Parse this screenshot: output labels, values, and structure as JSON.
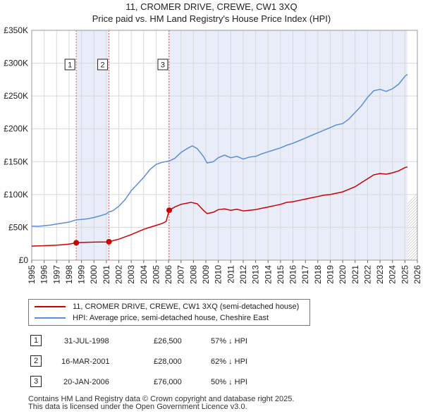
{
  "title_line1": "11, CROMER DRIVE, CREWE, CW1 3XQ",
  "title_line2": "Price paid vs. HM Land Registry's House Price Index (HPI)",
  "chart_data": {
    "type": "line",
    "xlim": [
      1995.0,
      2026.0
    ],
    "ylim": [
      0,
      350000
    ],
    "y_ticks": [
      {
        "value": 0,
        "label": "£0"
      },
      {
        "value": 50000,
        "label": "£50K"
      },
      {
        "value": 100000,
        "label": "£100K"
      },
      {
        "value": 150000,
        "label": "£150K"
      },
      {
        "value": 200000,
        "label": "£200K"
      },
      {
        "value": 250000,
        "label": "£250K"
      },
      {
        "value": 300000,
        "label": "£300K"
      },
      {
        "value": 350000,
        "label": "£350K"
      }
    ],
    "x_ticks": [
      "1995",
      "1996",
      "1997",
      "1998",
      "1999",
      "2000",
      "2001",
      "2002",
      "2003",
      "2004",
      "2005",
      "2006",
      "2007",
      "2008",
      "2009",
      "2010",
      "2011",
      "2012",
      "2013",
      "2014",
      "2015",
      "2016",
      "2017",
      "2018",
      "2019",
      "2020",
      "2021",
      "2022",
      "2023",
      "2024",
      "2025",
      "2026"
    ],
    "shaded_spans": [
      [
        1998.58,
        2001.21
      ],
      [
        2006.05,
        2025.2
      ]
    ],
    "future_start": 2025.2,
    "series": [
      {
        "name": "11, CROMER DRIVE, CREWE, CW1 3XQ (semi-detached house)",
        "color": "#cc0000",
        "points": [
          [
            1995.0,
            21500
          ],
          [
            1996.0,
            22000
          ],
          [
            1997.0,
            22800
          ],
          [
            1998.0,
            24500
          ],
          [
            1998.58,
            26500
          ],
          [
            1999.0,
            27000
          ],
          [
            2000.0,
            27500
          ],
          [
            2001.0,
            27800
          ],
          [
            2001.21,
            28000
          ],
          [
            2002.0,
            32000
          ],
          [
            2003.0,
            39000
          ],
          [
            2004.0,
            47000
          ],
          [
            2004.5,
            50000
          ],
          [
            2005.0,
            53000
          ],
          [
            2005.5,
            56000
          ],
          [
            2005.8,
            59000
          ],
          [
            2006.05,
            76000
          ],
          [
            2006.5,
            81000
          ],
          [
            2007.0,
            85000
          ],
          [
            2007.8,
            88000
          ],
          [
            2008.3,
            86000
          ],
          [
            2008.8,
            76000
          ],
          [
            2009.1,
            71000
          ],
          [
            2009.6,
            73000
          ],
          [
            2010.0,
            77000
          ],
          [
            2010.5,
            78000
          ],
          [
            2011.0,
            76000
          ],
          [
            2011.5,
            77500
          ],
          [
            2012.0,
            75000
          ],
          [
            2012.5,
            76000
          ],
          [
            2013.0,
            77000
          ],
          [
            2013.5,
            79000
          ],
          [
            2014.0,
            81000
          ],
          [
            2014.5,
            83000
          ],
          [
            2015.0,
            85000
          ],
          [
            2015.5,
            88000
          ],
          [
            2016.0,
            89000
          ],
          [
            2016.5,
            91000
          ],
          [
            2017.0,
            93000
          ],
          [
            2017.5,
            95000
          ],
          [
            2018.0,
            97000
          ],
          [
            2018.5,
            99000
          ],
          [
            2019.0,
            100000
          ],
          [
            2019.5,
            102000
          ],
          [
            2020.0,
            104000
          ],
          [
            2020.5,
            108000
          ],
          [
            2021.0,
            112000
          ],
          [
            2021.5,
            118000
          ],
          [
            2022.0,
            124000
          ],
          [
            2022.5,
            130000
          ],
          [
            2023.0,
            132000
          ],
          [
            2023.5,
            131000
          ],
          [
            2024.0,
            133000
          ],
          [
            2024.5,
            136000
          ],
          [
            2025.0,
            141000
          ],
          [
            2025.2,
            142000
          ]
        ]
      },
      {
        "name": "HPI: Average price, semi-detached house, Cheshire East",
        "color": "#5b8ed6",
        "points": [
          [
            1995.0,
            52000
          ],
          [
            1995.5,
            51500
          ],
          [
            1996.0,
            52500
          ],
          [
            1996.5,
            53500
          ],
          [
            1997.0,
            55000
          ],
          [
            1997.5,
            56500
          ],
          [
            1998.0,
            58000
          ],
          [
            1998.58,
            61500
          ],
          [
            1999.0,
            62000
          ],
          [
            1999.5,
            63000
          ],
          [
            2000.0,
            65000
          ],
          [
            2000.5,
            67500
          ],
          [
            2001.0,
            70500
          ],
          [
            2001.21,
            73500
          ],
          [
            2001.5,
            75000
          ],
          [
            2002.0,
            82000
          ],
          [
            2002.5,
            92000
          ],
          [
            2003.0,
            106000
          ],
          [
            2003.5,
            116000
          ],
          [
            2004.0,
            126000
          ],
          [
            2004.5,
            138000
          ],
          [
            2005.0,
            146000
          ],
          [
            2005.5,
            149000
          ],
          [
            2006.05,
            151000
          ],
          [
            2006.5,
            155000
          ],
          [
            2007.0,
            164000
          ],
          [
            2007.5,
            170000
          ],
          [
            2007.9,
            174000
          ],
          [
            2008.3,
            170000
          ],
          [
            2008.8,
            158000
          ],
          [
            2009.1,
            148000
          ],
          [
            2009.6,
            150000
          ],
          [
            2010.0,
            156000
          ],
          [
            2010.5,
            160000
          ],
          [
            2011.0,
            156000
          ],
          [
            2011.5,
            158000
          ],
          [
            2012.0,
            154000
          ],
          [
            2012.5,
            157000
          ],
          [
            2013.0,
            158000
          ],
          [
            2013.5,
            162000
          ],
          [
            2014.0,
            165000
          ],
          [
            2014.5,
            168000
          ],
          [
            2015.0,
            171000
          ],
          [
            2015.5,
            175000
          ],
          [
            2016.0,
            178000
          ],
          [
            2016.5,
            182000
          ],
          [
            2017.0,
            186000
          ],
          [
            2017.5,
            190000
          ],
          [
            2018.0,
            194000
          ],
          [
            2018.5,
            198000
          ],
          [
            2019.0,
            202000
          ],
          [
            2019.5,
            206000
          ],
          [
            2020.0,
            208000
          ],
          [
            2020.5,
            215000
          ],
          [
            2021.0,
            225000
          ],
          [
            2021.5,
            235000
          ],
          [
            2022.0,
            248000
          ],
          [
            2022.5,
            258000
          ],
          [
            2023.0,
            260000
          ],
          [
            2023.5,
            257000
          ],
          [
            2024.0,
            261000
          ],
          [
            2024.5,
            268000
          ],
          [
            2025.0,
            280000
          ],
          [
            2025.2,
            283000
          ]
        ]
      }
    ],
    "sales": [
      {
        "marker": "1",
        "x": 1998.58,
        "y": 26500
      },
      {
        "marker": "2",
        "x": 2001.21,
        "y": 28000
      },
      {
        "marker": "3",
        "x": 2006.05,
        "y": 76000
      }
    ]
  },
  "legend": {
    "property": "11, CROMER DRIVE, CREWE, CW1 3XQ (semi-detached house)",
    "hpi": "HPI: Average price, semi-detached house, Cheshire East"
  },
  "sales_table": [
    {
      "num": "1",
      "date": "31-JUL-1998",
      "price": "£26,500",
      "hpi": "57% ↓ HPI"
    },
    {
      "num": "2",
      "date": "16-MAR-2001",
      "price": "£28,000",
      "hpi": "62% ↓ HPI"
    },
    {
      "num": "3",
      "date": "20-JAN-2006",
      "price": "£76,000",
      "hpi": "50% ↓ HPI"
    }
  ],
  "footer_line1": "Contains HM Land Registry data © Crown copyright and database right 2025.",
  "footer_line2": "This data is licensed under the Open Government Licence v3.0."
}
